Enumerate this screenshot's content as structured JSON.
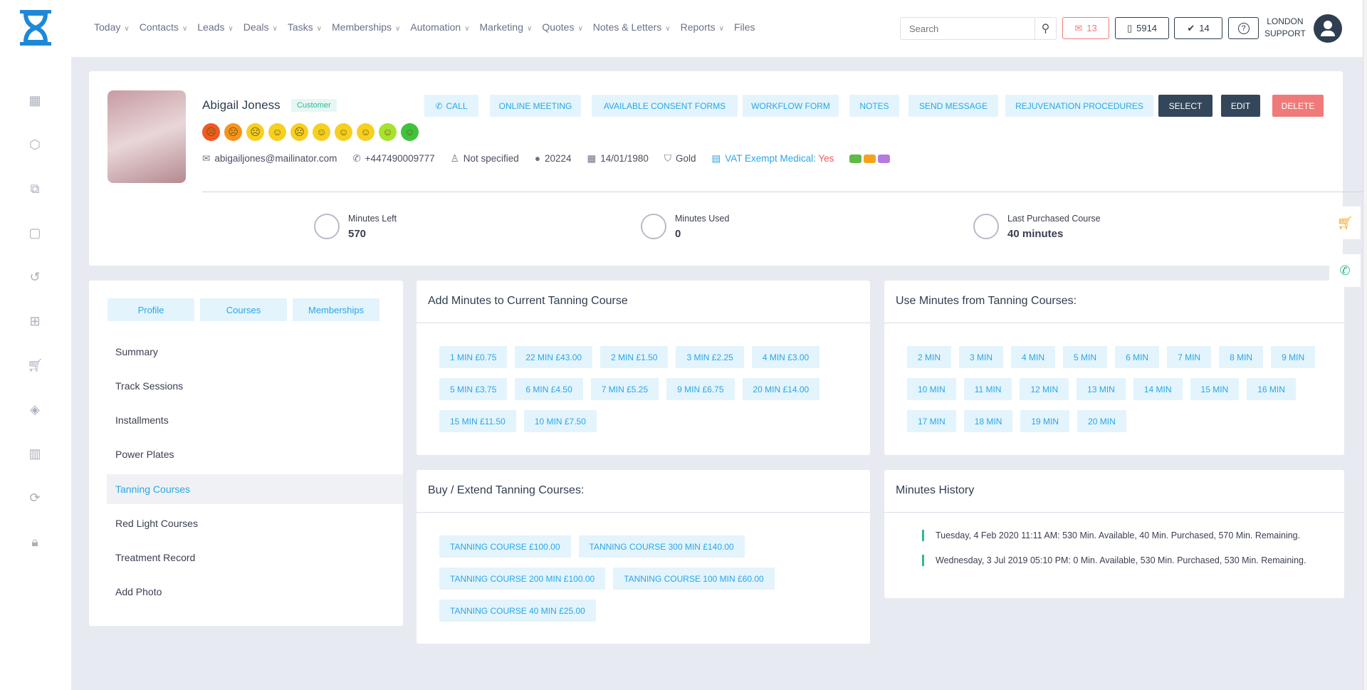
{
  "header": {
    "nav": [
      "Today",
      "Contacts",
      "Leads",
      "Deals",
      "Tasks",
      "Memberships",
      "Automation",
      "Marketing",
      "Quotes",
      "Notes & Letters",
      "Reports",
      "Files"
    ],
    "search_placeholder": "Search",
    "mail_count": "13",
    "phone_count": "5914",
    "tasks_count": "14",
    "help": "?",
    "user_line1": "LONDON",
    "user_line2": "SUPPORT"
  },
  "sidebar": {
    "icons": [
      "calendar-icon",
      "box-icon",
      "copy-icon",
      "gift-box-icon",
      "history-icon",
      "gift-icon",
      "cart-icon",
      "tags-icon",
      "report-icon",
      "refresh-icon",
      "lock-icon"
    ]
  },
  "profile": {
    "name": "Abigail Joness",
    "badge": "Customer",
    "actions": [
      "CALL",
      "ONLINE MEETING",
      "AVAILABLE CONSENT FORMS",
      "WORKFLOW FORM",
      "NOTES",
      "SEND MESSAGE",
      "REJUVENATION PROCEDURES"
    ],
    "select": "SELECT",
    "edit": "EDIT",
    "delete": "DELETE",
    "smiley_colors": [
      "#f15a24",
      "#f7931e",
      "#f5d020",
      "#f5d020",
      "#f5d020",
      "#f5d020",
      "#f5d020",
      "#f5d020",
      "#a6e22e",
      "#3fc33f"
    ],
    "email": "abigailjones@mailinator.com",
    "phone": "+447490009777",
    "gender": "Not specified",
    "id": "20224",
    "dob": "14/01/1980",
    "tier": "Gold",
    "vat_label": "VAT Exempt Medical:",
    "vat_value": "Yes",
    "tag_colors": [
      "#5fba46",
      "#f7a21b",
      "#b57be0"
    ],
    "stats": [
      {
        "label": "Minutes Left",
        "value": "570"
      },
      {
        "label": "Minutes Used",
        "value": "0"
      },
      {
        "label": "Last Purchased Course",
        "value": "40 minutes"
      }
    ]
  },
  "left_panel": {
    "tabs": [
      "Profile",
      "Courses",
      "Memberships"
    ],
    "menu": [
      "Summary",
      "Track Sessions",
      "Installments",
      "Power Plates",
      "Tanning Courses",
      "Red Light Courses",
      "Treatment Record",
      "Add Photo"
    ],
    "active": "Tanning Courses"
  },
  "add_minutes": {
    "title": "Add Minutes to Current Tanning Course",
    "options": [
      "1 MIN £0.75",
      "22 MIN £43.00",
      "2 MIN £1.50",
      "3 MIN £2.25",
      "4 MIN £3.00",
      "5 MIN £3.75",
      "6 MIN £4.50",
      "7 MIN £5.25",
      "9 MIN £6.75",
      "20 MIN £14.00",
      "15 MIN £11.50",
      "10 MIN £7.50"
    ]
  },
  "use_minutes": {
    "title": "Use Minutes from Tanning Courses:",
    "options": [
      "2 MIN",
      "3 MIN",
      "4 MIN",
      "5 MIN",
      "6 MIN",
      "7 MIN",
      "8 MIN",
      "9 MIN",
      "10 MIN",
      "11 MIN",
      "12 MIN",
      "13 MIN",
      "14 MIN",
      "15 MIN",
      "16 MIN",
      "17 MIN",
      "18 MIN",
      "19 MIN",
      "20 MIN"
    ]
  },
  "buy": {
    "title": "Buy / Extend Tanning Courses:",
    "options": [
      "TANNING COURSE £100.00",
      "TANNING COURSE 300 MIN £140.00",
      "TANNING COURSE 200 MIN £100.00",
      "TANNING COURSE 100 MIN £60.00",
      "TANNING COURSE 40 MIN £25.00"
    ]
  },
  "history": {
    "title": "Minutes History",
    "entries": [
      "Tuesday, 4 Feb 2020 11:11 AM: 530 Min. Available, 40 Min. Purchased, 570 Min. Remaining.",
      "Wednesday, 3 Jul 2019 05:10 PM: 0 Min. Available, 530 Min. Purchased, 530 Min. Remaining."
    ]
  }
}
